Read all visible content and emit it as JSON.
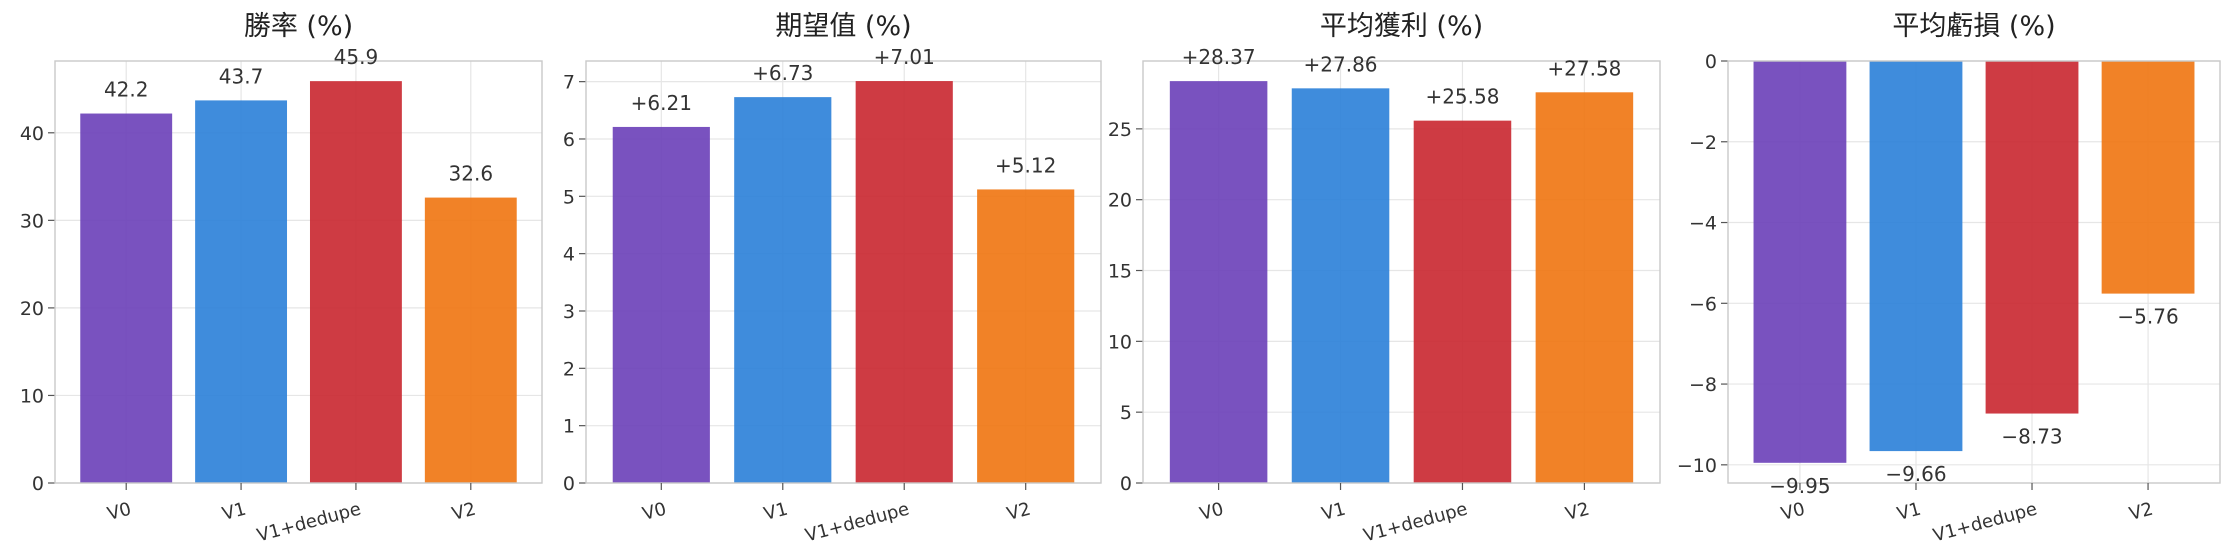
{
  "chart_data": [
    {
      "type": "bar",
      "title": "勝率 (%)",
      "categories": [
        "V0",
        "V1",
        "V1+dedupe",
        "V2"
      ],
      "values": [
        42.2,
        43.7,
        45.9,
        32.6
      ],
      "value_labels": [
        "42.2",
        "43.7",
        "45.9",
        "32.6"
      ],
      "ylim": [
        0,
        48.2
      ],
      "yticks": [
        0,
        10,
        20,
        30,
        40
      ],
      "colors": [
        "#6a3fb8",
        "#2a80d8",
        "#c9262f",
        "#ef7410"
      ],
      "grid": true
    },
    {
      "type": "bar",
      "title": "期望值 (%)",
      "categories": [
        "V0",
        "V1",
        "V1+dedupe",
        "V2"
      ],
      "values": [
        6.21,
        6.73,
        7.01,
        5.12
      ],
      "value_labels": [
        "+6.21",
        "+6.73",
        "+7.01",
        "+5.12"
      ],
      "ylim": [
        0,
        7.36
      ],
      "yticks": [
        0,
        1,
        2,
        3,
        4,
        5,
        6,
        7
      ],
      "colors": [
        "#6a3fb8",
        "#2a80d8",
        "#c9262f",
        "#ef7410"
      ],
      "grid": true
    },
    {
      "type": "bar",
      "title": "平均獲利 (%)",
      "categories": [
        "V0",
        "V1",
        "V1+dedupe",
        "V2"
      ],
      "values": [
        28.37,
        27.86,
        25.58,
        27.58
      ],
      "value_labels": [
        "+28.37",
        "+27.86",
        "+25.58",
        "+27.58"
      ],
      "ylim": [
        0,
        29.79
      ],
      "yticks": [
        0,
        5,
        10,
        15,
        20,
        25
      ],
      "colors": [
        "#6a3fb8",
        "#2a80d8",
        "#c9262f",
        "#ef7410"
      ],
      "grid": true
    },
    {
      "type": "bar",
      "title": "平均虧損 (%)",
      "categories": [
        "V0",
        "V1",
        "V1+dedupe",
        "V2"
      ],
      "values": [
        -9.95,
        -9.66,
        -8.73,
        -5.76
      ],
      "value_labels": [
        "−9.95",
        "−9.66",
        "−8.73",
        "−5.76"
      ],
      "ylim": [
        -10.45,
        0
      ],
      "yticks": [
        -10,
        -8,
        -6,
        -4,
        -2,
        0
      ],
      "tick_labels": [
        "−10",
        "−8",
        "−6",
        "−4",
        "−2",
        "0"
      ],
      "colors": [
        "#6a3fb8",
        "#2a80d8",
        "#c9262f",
        "#ef7410"
      ],
      "grid": true
    }
  ]
}
